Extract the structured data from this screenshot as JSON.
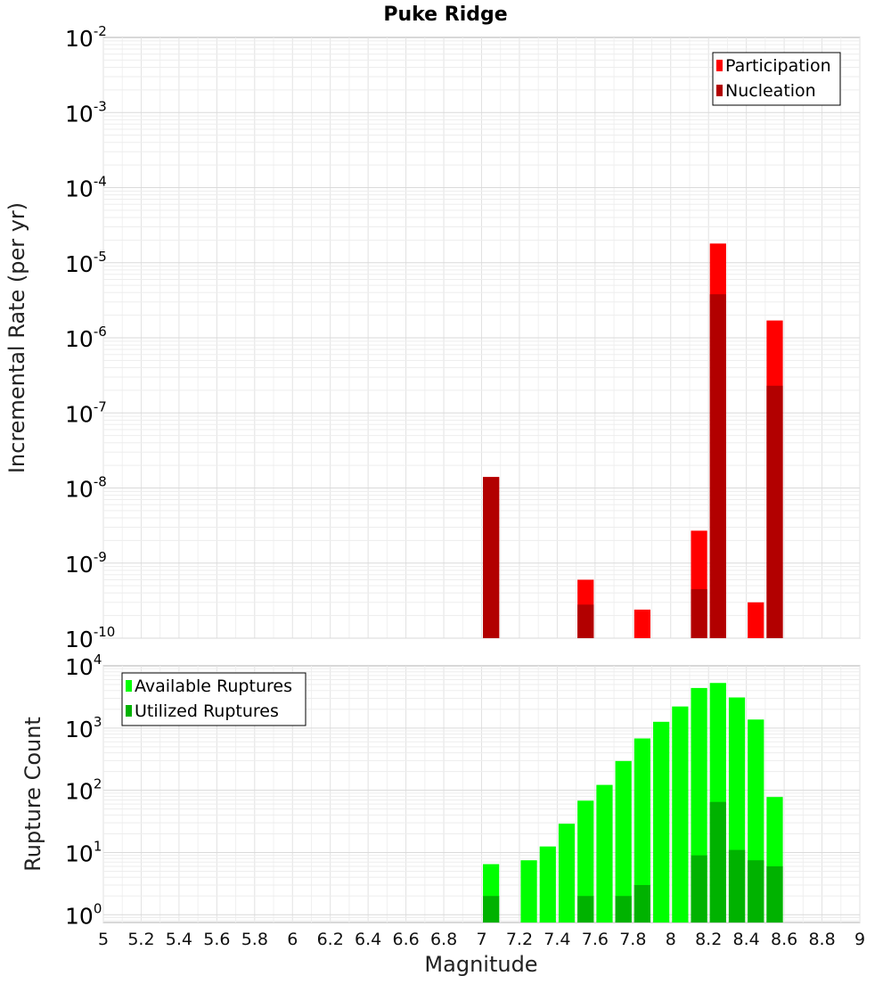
{
  "chart_data": [
    {
      "type": "bar",
      "title": "Puke Ridge",
      "ylabel": "Incremental Rate (per yr)",
      "y_scale": "log",
      "ylim": [
        1e-10,
        0.01
      ],
      "y_tick_exponents": [
        "-2",
        "-3",
        "-4",
        "-5",
        "-6",
        "-7",
        "-8",
        "-9",
        "-10"
      ],
      "y_tick_base": "10",
      "xlim": [
        5,
        9
      ],
      "grid": true,
      "legend_position": "top-right",
      "series": [
        {
          "name": "Participation",
          "color": "#ff0000",
          "points": [
            {
              "x": 7.05,
              "y": 1.4e-08
            },
            {
              "x": 7.55,
              "y": 6e-10
            },
            {
              "x": 7.85,
              "y": 2.4e-10
            },
            {
              "x": 8.15,
              "y": 2.7e-09
            },
            {
              "x": 8.25,
              "y": 1.8e-05
            },
            {
              "x": 8.45,
              "y": 3e-10
            },
            {
              "x": 8.55,
              "y": 1.7e-06
            }
          ]
        },
        {
          "name": "Nucleation",
          "color": "#b20000",
          "points": [
            {
              "x": 7.05,
              "y": 1.4e-08
            },
            {
              "x": 7.55,
              "y": 2.8e-10
            },
            {
              "x": 8.15,
              "y": 4.5e-10
            },
            {
              "x": 8.25,
              "y": 3.8e-06
            },
            {
              "x": 8.55,
              "y": 2.3e-07
            }
          ]
        }
      ]
    },
    {
      "type": "bar",
      "title": "",
      "ylabel": "Rupture Count",
      "xlabel": "Magnitude",
      "y_scale": "log",
      "ylim": [
        0.75,
        10000
      ],
      "y_tick_exponents": [
        "4",
        "3",
        "2",
        "1",
        "0"
      ],
      "y_tick_base": "10",
      "xlim": [
        5,
        9
      ],
      "x_ticks": [
        "5",
        "5.2",
        "5.4",
        "5.6",
        "5.8",
        "6",
        "6.2",
        "6.4",
        "6.6",
        "6.8",
        "7",
        "7.2",
        "7.4",
        "7.6",
        "7.8",
        "8",
        "8.2",
        "8.4",
        "8.6",
        "8.8",
        "9"
      ],
      "grid": true,
      "legend_position": "top-left",
      "series": [
        {
          "name": "Available Ruptures",
          "color": "#00ff00",
          "points": [
            {
              "x": 7.05,
              "y": 6.5
            },
            {
              "x": 7.25,
              "y": 7.5
            },
            {
              "x": 7.35,
              "y": 12.5
            },
            {
              "x": 7.45,
              "y": 29
            },
            {
              "x": 7.55,
              "y": 68
            },
            {
              "x": 7.65,
              "y": 122
            },
            {
              "x": 7.75,
              "y": 295
            },
            {
              "x": 7.85,
              "y": 680
            },
            {
              "x": 7.95,
              "y": 1260
            },
            {
              "x": 8.05,
              "y": 2220
            },
            {
              "x": 8.15,
              "y": 4400
            },
            {
              "x": 8.25,
              "y": 5300
            },
            {
              "x": 8.35,
              "y": 3100
            },
            {
              "x": 8.45,
              "y": 1370
            },
            {
              "x": 8.55,
              "y": 78
            }
          ]
        },
        {
          "name": "Utilized Ruptures",
          "color": "#00b200",
          "points": [
            {
              "x": 7.05,
              "y": 2
            },
            {
              "x": 7.55,
              "y": 2
            },
            {
              "x": 7.75,
              "y": 2
            },
            {
              "x": 7.85,
              "y": 3
            },
            {
              "x": 8.15,
              "y": 9
            },
            {
              "x": 8.25,
              "y": 65
            },
            {
              "x": 8.35,
              "y": 11
            },
            {
              "x": 8.45,
              "y": 7.5
            },
            {
              "x": 8.55,
              "y": 6
            }
          ]
        }
      ]
    }
  ]
}
